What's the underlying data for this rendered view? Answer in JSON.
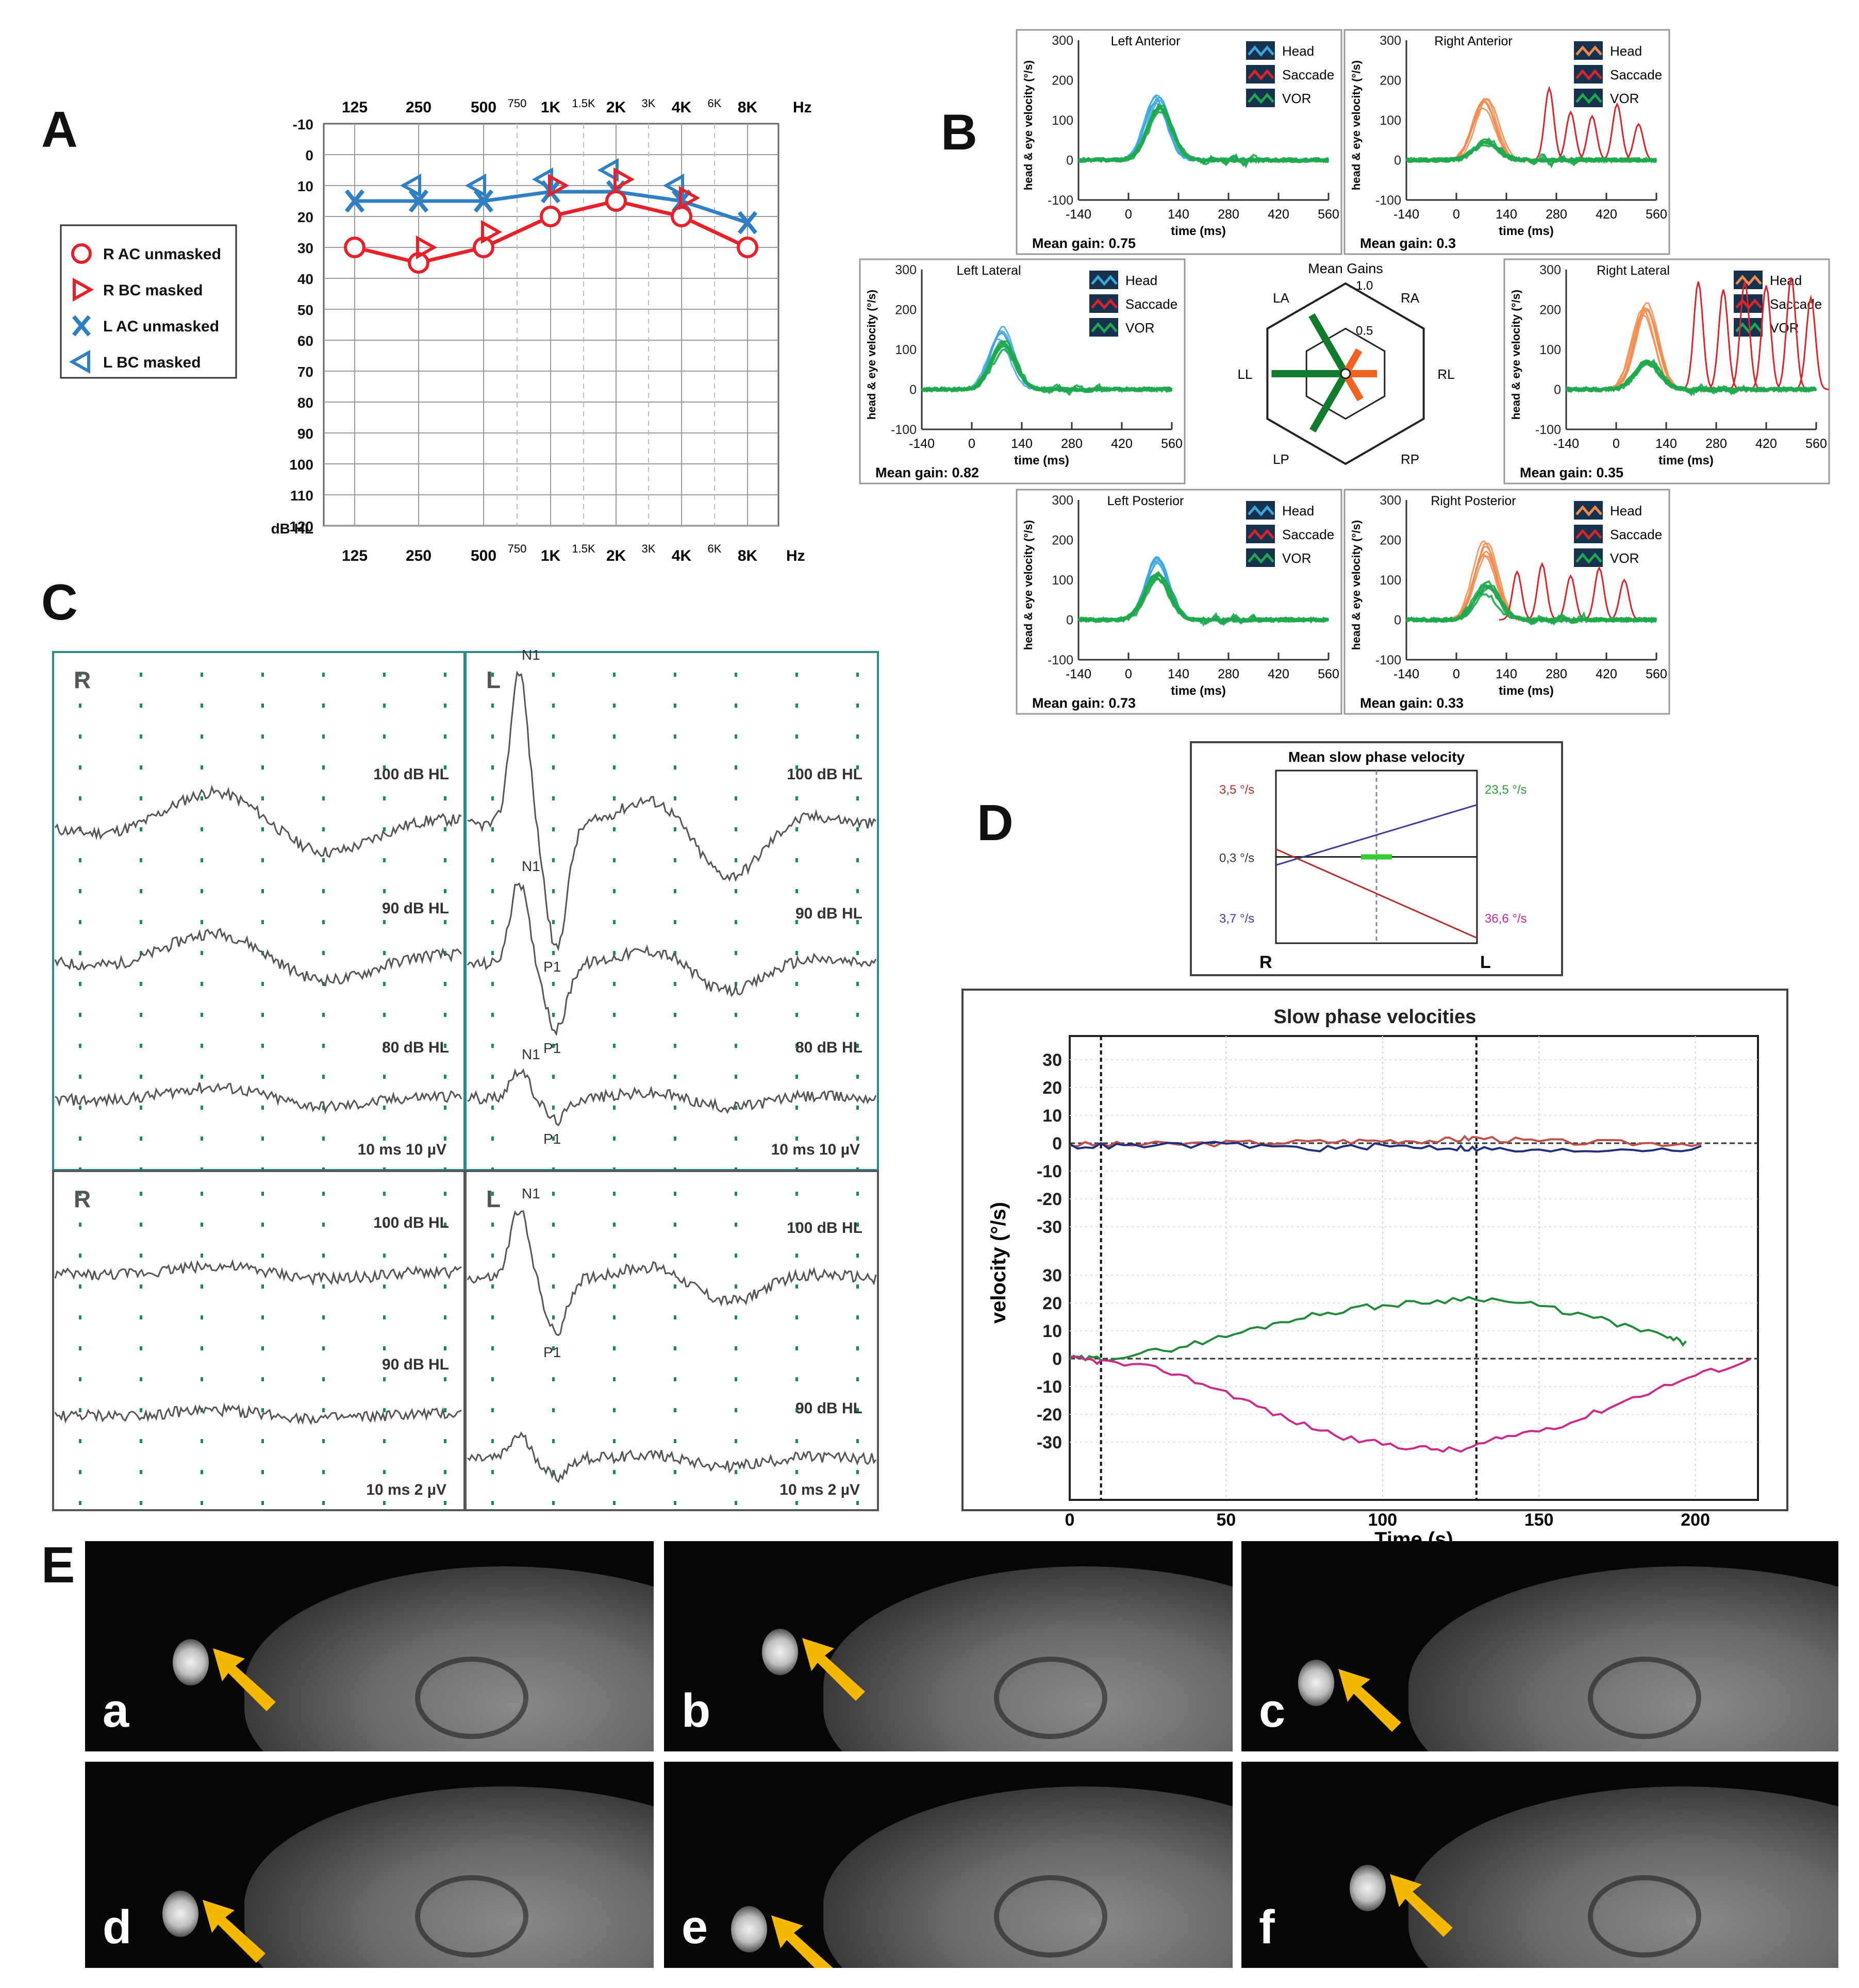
{
  "panel_letters": {
    "A": "A",
    "B": "B",
    "C": "C",
    "D": "D",
    "E": "E"
  },
  "colors": {
    "right_red": "#e8202a",
    "left_blue": "#2f7fc1",
    "head_blue": "#3aa6dd",
    "head_orange": "#f08a4b",
    "vor_green": "#1fa84f",
    "saccade_red": "#d9242b",
    "trace_gray": "#555555",
    "grid_green": "#1a8a5a",
    "mri_arrow": "#f5b800"
  },
  "audiogram": {
    "legend": [
      {
        "label": "R AC unmasked",
        "symbol": "circle",
        "color": "#e8202a"
      },
      {
        "label": "R BC masked",
        "symbol": "triangle-right",
        "color": "#e8202a"
      },
      {
        "label": "L AC unmasked",
        "symbol": "x",
        "color": "#2f7fc1"
      },
      {
        "label": "L BC masked",
        "symbol": "triangle-left",
        "color": "#2f7fc1"
      }
    ],
    "y_unit": "dB HL",
    "x_unit": "Hz",
    "freq_main": [
      "125",
      "250",
      "500",
      "1K",
      "2K",
      "4K",
      "8K"
    ],
    "freq_inter": [
      "750",
      "1.5K",
      "3K",
      "6K"
    ]
  },
  "chart_data": [
    {
      "type": "line",
      "title": "Audiogram",
      "xlabel": "Hz",
      "ylabel": "dB HL",
      "categories": [
        "125",
        "250",
        "500",
        "1K",
        "2K",
        "4K",
        "8K"
      ],
      "y_ticks": [
        "-10",
        "0",
        "10",
        "20",
        "30",
        "40",
        "50",
        "60",
        "70",
        "80",
        "90",
        "100",
        "110",
        "120"
      ],
      "ylim": [
        120,
        -10
      ],
      "series": [
        {
          "name": "R AC unmasked",
          "values": [
            30,
            35,
            30,
            20,
            15,
            20,
            30
          ]
        },
        {
          "name": "R BC masked",
          "x": [
            "250",
            "500",
            "1K",
            "2K",
            "4K"
          ],
          "values": [
            30,
            25,
            10,
            8,
            14
          ]
        },
        {
          "name": "L AC unmasked",
          "values": [
            15,
            15,
            15,
            12,
            12,
            15,
            22
          ]
        },
        {
          "name": "L BC masked",
          "x": [
            "250",
            "500",
            "1K",
            "2K",
            "4K"
          ],
          "values": [
            10,
            10,
            8,
            5,
            10
          ]
        }
      ]
    },
    {
      "type": "line",
      "title": "vHIT",
      "xlabel": "time (ms)",
      "ylabel": "head & eye velocity (°/s)",
      "x_ticks": [
        "-140",
        "0",
        "140",
        "280",
        "420",
        "560"
      ],
      "y_ticks": [
        "300",
        "200",
        "100",
        "0",
        "-100"
      ],
      "xlim": [
        -140,
        560
      ],
      "ylim": [
        -100,
        300
      ],
      "legend": [
        "Head",
        "Saccade",
        "VOR"
      ],
      "center": {
        "title": "Mean Gains",
        "labels": [
          "LA",
          "RA",
          "LL",
          "RL",
          "LP",
          "RP"
        ],
        "ring_labels": [
          "1.0",
          "0.5"
        ],
        "gains": {
          "LA": 0.75,
          "RA": 0.3,
          "LL": 0.82,
          "RL": 0.35,
          "LP": 0.73,
          "RP": 0.33
        }
      },
      "plots": [
        {
          "title": "Left Anterior",
          "gain_label": "Mean gain: 0.75",
          "head_color": "#3aa6dd",
          "head_peak": 160,
          "vor_peak": 145,
          "saccades": []
        },
        {
          "title": "Right Anterior",
          "gain_label": "Mean gain: 0.3",
          "head_color": "#f08a4b",
          "head_peak": 150,
          "vor_peak": 45,
          "saccades": [
            [
              260,
              180
            ],
            [
              320,
              120
            ],
            [
              380,
              110
            ],
            [
              450,
              140
            ],
            [
              510,
              90
            ]
          ]
        },
        {
          "title": "Left Lateral",
          "gain_label": "Mean gain: 0.82",
          "head_color": "#3aa6dd",
          "head_peak": 140,
          "vor_peak": 120,
          "saccades": []
        },
        {
          "title": "Right Lateral",
          "gain_label": "Mean gain: 0.35",
          "head_color": "#f08a4b",
          "head_peak": 190,
          "vor_peak": 65,
          "saccades": [
            [
              230,
              270
            ],
            [
              300,
              250
            ],
            [
              360,
              270
            ],
            [
              420,
              260
            ],
            [
              490,
              280
            ],
            [
              545,
              230
            ]
          ]
        },
        {
          "title": "Left Posterior",
          "gain_label": "Mean gain: 0.73",
          "head_color": "#3aa6dd",
          "head_peak": 140,
          "vor_peak": 110,
          "saccades": []
        },
        {
          "title": "Right Posterior",
          "gain_label": "Mean gain: 0.33",
          "head_color": "#f08a4b",
          "head_peak": 170,
          "vor_peak": 80,
          "saccades": [
            [
              170,
              120
            ],
            [
              240,
              140
            ],
            [
              320,
              110
            ],
            [
              400,
              130
            ],
            [
              470,
              100
            ]
          ]
        }
      ]
    },
    {
      "type": "line",
      "title": "VEMP",
      "panels": [
        {
          "side": "R",
          "scale": "10 ms    10 µV",
          "levels": [
            "100 dB HL",
            "90 dB HL",
            "80 dB HL"
          ],
          "peaks": []
        },
        {
          "side": "L",
          "scale": "10 ms    10 µV",
          "levels": [
            "100 dB HL",
            "90 dB HL",
            "80 dB HL"
          ],
          "peaks": [
            "N1",
            "P1",
            "N1",
            "P1",
            "N1",
            "P1"
          ]
        },
        {
          "side": "R",
          "scale": "10 ms    2 µV",
          "levels": [
            "100 dB HL",
            "90 dB HL"
          ],
          "peaks": []
        },
        {
          "side": "L",
          "scale": "10 ms    2 µV",
          "levels": [
            "100 dB HL",
            "90 dB HL"
          ],
          "peaks": [
            "N1",
            "P1"
          ]
        }
      ]
    },
    {
      "type": "line",
      "title": "Mean slow phase velocity",
      "left_labels": [
        "3,5 °/s",
        "0,3 °/s",
        "3,7 °/s"
      ],
      "right_labels": [
        "23,5 °/s",
        "36,6 °/s"
      ],
      "x_labels": [
        "R",
        "L"
      ],
      "series": [
        {
          "name": "left upper",
          "left": -3.7,
          "right": 23.5
        },
        {
          "name": "left lower",
          "left": 3.5,
          "right": -36.6
        }
      ]
    },
    {
      "type": "line",
      "title": "Slow phase velocities",
      "xlabel": "Time (s)",
      "ylabel": "velocity (°/s)",
      "x_ticks": [
        "0",
        "50",
        "100",
        "150",
        "200"
      ],
      "y_ticks_top": [
        "30",
        "20",
        "10",
        "0",
        "-10",
        "-20",
        "-30"
      ],
      "y_ticks_bottom": [
        "30",
        "20",
        "10",
        "0",
        "-10",
        "-20",
        "-30"
      ],
      "xlim": [
        0,
        220
      ],
      "ylim": [
        -30,
        30
      ],
      "markers": [
        10,
        130
      ],
      "series": [
        {
          "name": "top-red",
          "x": [
            0,
            20,
            50,
            80,
            100,
            120,
            130,
            150,
            180,
            205
          ],
          "values": [
            -0.5,
            -0.5,
            0,
            0.5,
            1,
            1,
            2,
            0.5,
            0,
            0
          ]
        },
        {
          "name": "top-blue",
          "x": [
            0,
            20,
            50,
            80,
            100,
            120,
            130,
            150,
            180,
            205
          ],
          "values": [
            -1,
            -1,
            -0.5,
            -2,
            -1,
            -1.5,
            -2,
            -3,
            -2,
            -2
          ]
        },
        {
          "name": "bottom-green",
          "x": [
            0,
            10,
            30,
            50,
            70,
            90,
            110,
            130,
            150,
            170,
            190,
            198
          ],
          "values": [
            0,
            0,
            3,
            8,
            14,
            18,
            20,
            22,
            19,
            14,
            8,
            5
          ]
        },
        {
          "name": "bottom-magenta",
          "x": [
            0,
            10,
            30,
            50,
            70,
            90,
            110,
            125,
            140,
            160,
            180,
            200,
            220
          ],
          "values": [
            0,
            -1,
            -4,
            -12,
            -22,
            -29,
            -32,
            -33,
            -28,
            -23,
            -14,
            -6,
            0
          ]
        }
      ]
    }
  ],
  "mri": {
    "sublabels": [
      "a",
      "b",
      "c",
      "d",
      "e",
      "f"
    ]
  }
}
